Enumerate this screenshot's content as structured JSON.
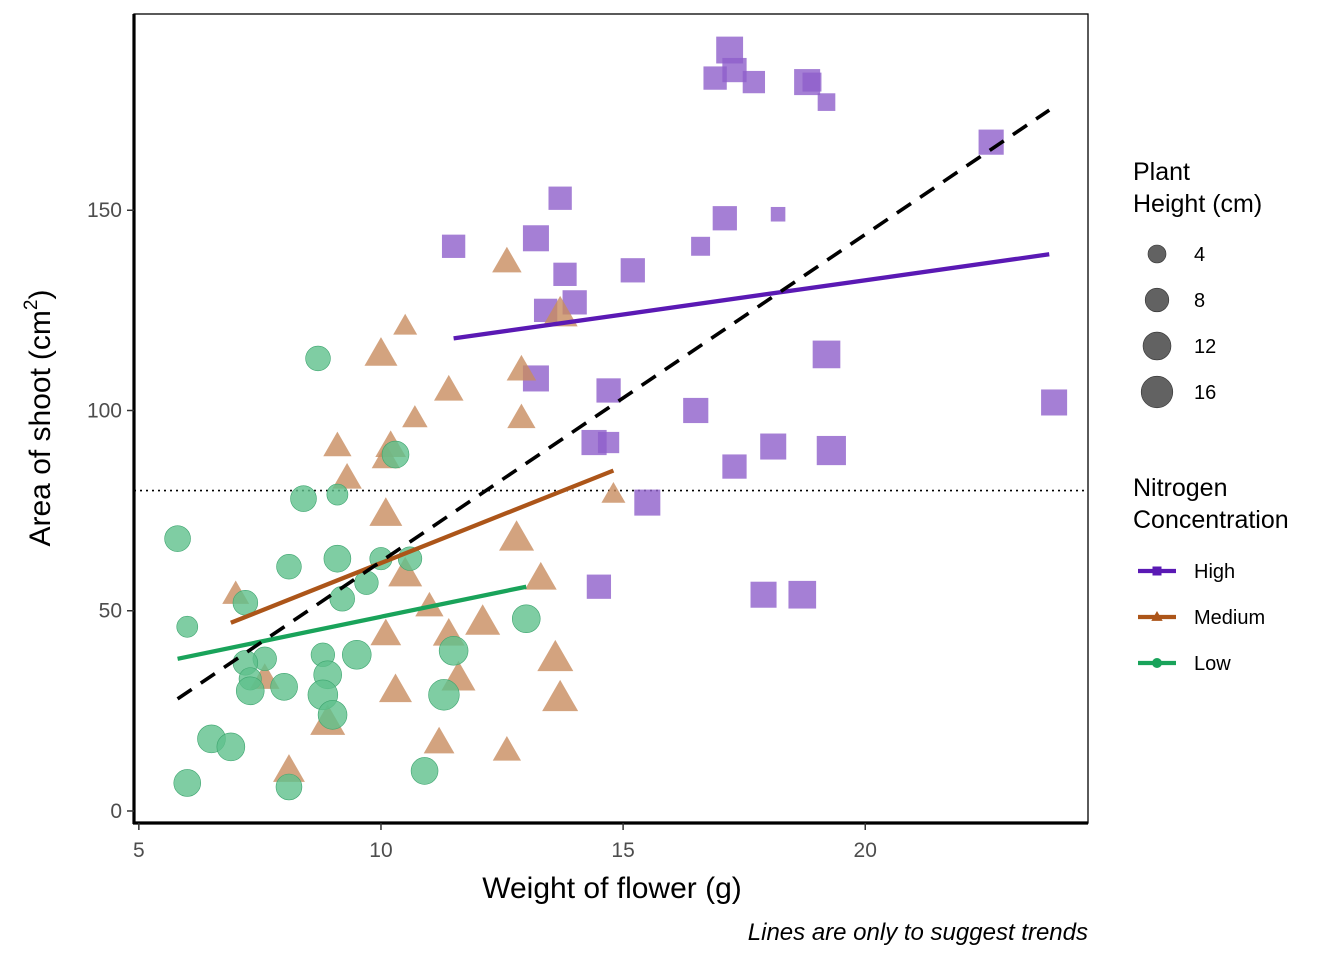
{
  "chart_data": {
    "type": "scatter",
    "xlabel": "Weight of flower (g)",
    "ylabel_main": "Area of shoot",
    "ylabel_unit_open": "(cm",
    "ylabel_unit_sup": "2",
    "ylabel_unit_close": ")",
    "caption": "Lines are only to suggest trends",
    "xlim": [
      4.9,
      24.6
    ],
    "ylim": [
      -3,
      199
    ],
    "x_ticks": [
      5,
      10,
      15,
      20
    ],
    "y_ticks": [
      0,
      50,
      100,
      150
    ],
    "x_tick_labels": [
      "5",
      "10",
      "15",
      "20"
    ],
    "y_tick_labels": [
      "0",
      "50",
      "100",
      "150"
    ],
    "reference_line_y": 80,
    "overall_trend": {
      "x": [
        5.8,
        23.8
      ],
      "y": [
        28,
        175
      ]
    },
    "size_legend": {
      "title_lines": [
        "Plant",
        "Height (cm)"
      ],
      "entries": [
        {
          "label": "4",
          "value": 4
        },
        {
          "label": "8",
          "value": 8
        },
        {
          "label": "12",
          "value": 12
        },
        {
          "label": "16",
          "value": 16
        }
      ]
    },
    "color_legend": {
      "title_lines": [
        "Nitrogen",
        "Concentration"
      ]
    },
    "series": [
      {
        "name": "High",
        "shape": "square",
        "color": "#8e5fcb",
        "line_color": "#5a19b4",
        "trend": {
          "x": [
            11.5,
            23.8
          ],
          "y": [
            118,
            139
          ]
        },
        "points": [
          [
            17.2,
            190,
            14
          ],
          [
            17.3,
            185,
            11
          ],
          [
            16.9,
            183,
            10
          ],
          [
            17.7,
            182,
            9
          ],
          [
            18.8,
            182,
            13
          ],
          [
            18.9,
            182,
            6
          ],
          [
            19.2,
            177,
            5
          ],
          [
            22.6,
            167,
            12
          ],
          [
            13.7,
            153,
            10
          ],
          [
            11.5,
            141,
            10
          ],
          [
            13.2,
            143,
            13
          ],
          [
            17.1,
            148,
            11
          ],
          [
            18.2,
            149,
            3
          ],
          [
            16.6,
            141,
            6
          ],
          [
            15.2,
            135,
            11
          ],
          [
            13.8,
            134,
            10
          ],
          [
            14.0,
            127,
            11
          ],
          [
            13.4,
            125,
            10
          ],
          [
            19.2,
            114,
            15
          ],
          [
            13.2,
            108,
            13
          ],
          [
            14.7,
            105,
            11
          ],
          [
            16.5,
            100,
            12
          ],
          [
            23.9,
            102,
            13
          ],
          [
            14.4,
            92,
            12
          ],
          [
            14.7,
            92,
            8
          ],
          [
            18.1,
            91,
            13
          ],
          [
            19.3,
            90,
            17
          ],
          [
            17.3,
            86,
            11
          ],
          [
            15.5,
            77,
            13
          ],
          [
            14.5,
            56,
            11
          ],
          [
            17.9,
            54,
            13
          ],
          [
            18.7,
            54,
            15
          ]
        ]
      },
      {
        "name": "Medium",
        "shape": "triangle",
        "color": "#c88c5f",
        "line_color": "#ac5519",
        "trend": {
          "x": [
            6.9,
            14.8
          ],
          "y": [
            47,
            85
          ]
        },
        "points": [
          [
            12.6,
            137,
            10
          ],
          [
            10.5,
            121,
            6
          ],
          [
            13.7,
            124,
            15
          ],
          [
            10.0,
            114,
            13
          ],
          [
            11.4,
            105,
            10
          ],
          [
            12.9,
            110,
            10
          ],
          [
            10.7,
            98,
            7
          ],
          [
            12.9,
            98,
            9
          ],
          [
            9.1,
            91,
            9
          ],
          [
            10.2,
            91,
            11
          ],
          [
            10.1,
            88,
            9
          ],
          [
            9.3,
            83,
            10
          ],
          [
            14.8,
            79,
            6
          ],
          [
            10.1,
            74,
            13
          ],
          [
            12.8,
            68,
            15
          ],
          [
            10.5,
            59,
            14
          ],
          [
            13.3,
            58,
            12
          ],
          [
            7.0,
            54,
            8
          ],
          [
            11.0,
            51,
            9
          ],
          [
            10.1,
            44,
            11
          ],
          [
            11.4,
            44,
            12
          ],
          [
            12.1,
            47,
            15
          ],
          [
            13.6,
            38,
            16
          ],
          [
            7.6,
            33,
            10
          ],
          [
            11.6,
            33,
            14
          ],
          [
            10.3,
            30,
            13
          ],
          [
            8.9,
            22,
            15
          ],
          [
            13.7,
            28,
            16
          ],
          [
            11.2,
            17,
            11
          ],
          [
            8.1,
            10,
            12
          ],
          [
            12.6,
            15,
            9
          ]
        ]
      },
      {
        "name": "Low",
        "shape": "circle",
        "color": "#5fc08c",
        "line_color": "#19a35a",
        "trend": {
          "x": [
            5.8,
            13.0
          ],
          "y": [
            38,
            56
          ]
        },
        "points": [
          [
            8.7,
            113,
            9
          ],
          [
            5.8,
            68,
            10
          ],
          [
            8.4,
            78,
            10
          ],
          [
            9.1,
            79,
            6
          ],
          [
            10.3,
            89,
            11
          ],
          [
            9.1,
            63,
            11
          ],
          [
            8.1,
            61,
            9
          ],
          [
            10.0,
            63,
            7
          ],
          [
            10.6,
            63,
            8
          ],
          [
            9.7,
            57,
            8
          ],
          [
            9.2,
            53,
            9
          ],
          [
            7.2,
            52,
            9
          ],
          [
            6.0,
            46,
            6
          ],
          [
            13.0,
            48,
            12
          ],
          [
            11.5,
            40,
            13
          ],
          [
            9.5,
            39,
            13
          ],
          [
            8.8,
            39,
            8
          ],
          [
            7.6,
            38,
            8
          ],
          [
            7.2,
            37,
            9
          ],
          [
            8.9,
            34,
            12
          ],
          [
            7.3,
            33,
            7
          ],
          [
            7.3,
            30,
            12
          ],
          [
            8.0,
            31,
            11
          ],
          [
            8.8,
            29,
            14
          ],
          [
            11.3,
            29,
            15
          ],
          [
            9.0,
            24,
            13
          ],
          [
            6.5,
            18,
            12
          ],
          [
            6.9,
            16,
            12
          ],
          [
            10.9,
            10,
            11
          ],
          [
            6.0,
            7,
            11
          ],
          [
            8.1,
            6,
            10
          ]
        ]
      }
    ]
  }
}
